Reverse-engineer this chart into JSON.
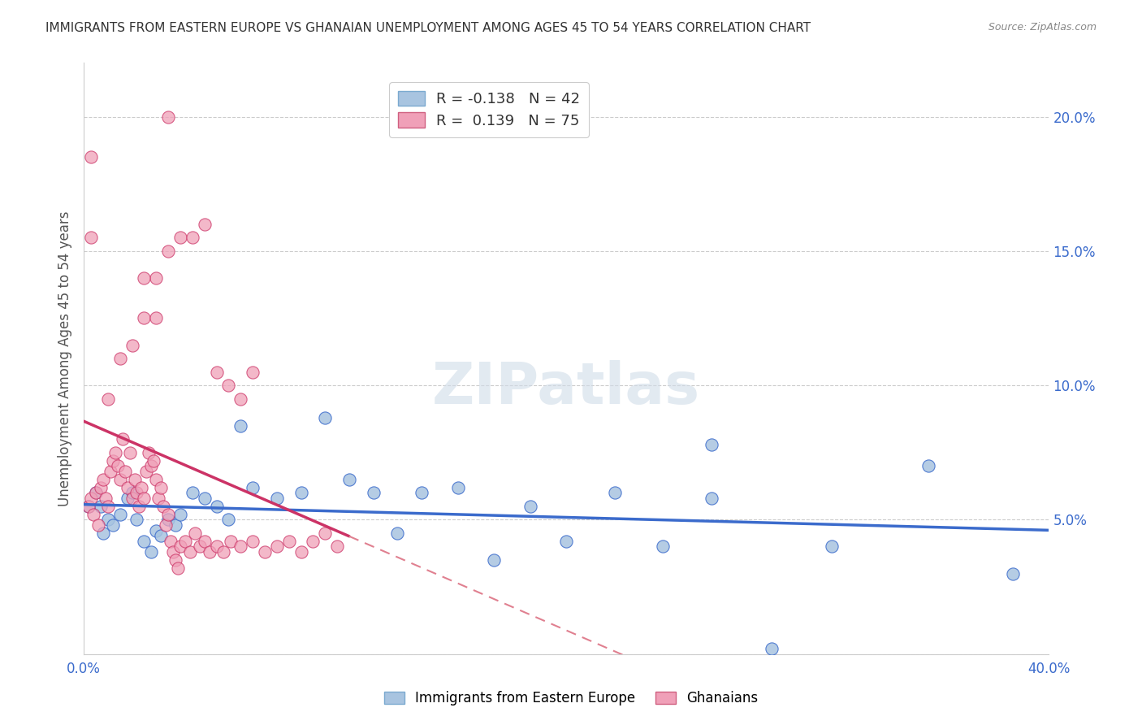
{
  "title": "IMMIGRANTS FROM EASTERN EUROPE VS GHANAIAN UNEMPLOYMENT AMONG AGES 45 TO 54 YEARS CORRELATION CHART",
  "source": "Source: ZipAtlas.com",
  "xlabel": "",
  "ylabel": "Unemployment Among Ages 45 to 54 years",
  "legend_label1": "Immigrants from Eastern Europe",
  "legend_label2": "Ghanaians",
  "R1": "-0.138",
  "N1": "42",
  "R2": "0.139",
  "N2": "75",
  "xlim": [
    0.0,
    0.4
  ],
  "ylim": [
    0.0,
    0.22
  ],
  "x_ticks": [
    0.0,
    0.05,
    0.1,
    0.15,
    0.2,
    0.25,
    0.3,
    0.35,
    0.4
  ],
  "x_tick_labels": [
    "0.0%",
    "",
    "",
    "",
    "",
    "",
    "",
    "",
    "40.0%"
  ],
  "y_ticks": [
    0.0,
    0.05,
    0.1,
    0.15,
    0.2
  ],
  "y_tick_labels": [
    "",
    "5.0%",
    "10.0%",
    "15.0%",
    "20.0%"
  ],
  "color_blue": "#a8c4e0",
  "color_blue_line": "#3b6bcc",
  "color_pink": "#f0a0b8",
  "color_pink_line": "#cc3366",
  "color_pink_dashed": "#e08090",
  "watermark": "ZIPatlas",
  "blue_x": [
    0.002,
    0.005,
    0.007,
    0.008,
    0.01,
    0.012,
    0.015,
    0.018,
    0.02,
    0.022,
    0.025,
    0.028,
    0.03,
    0.032,
    0.035,
    0.038,
    0.04,
    0.045,
    0.05,
    0.055,
    0.06,
    0.065,
    0.07,
    0.08,
    0.09,
    0.1,
    0.11,
    0.12,
    0.13,
    0.14,
    0.155,
    0.17,
    0.185,
    0.2,
    0.22,
    0.24,
    0.26,
    0.285,
    0.31,
    0.35,
    0.385,
    0.26
  ],
  "blue_y": [
    0.055,
    0.06,
    0.055,
    0.045,
    0.05,
    0.048,
    0.052,
    0.058,
    0.06,
    0.05,
    0.042,
    0.038,
    0.046,
    0.044,
    0.05,
    0.048,
    0.052,
    0.06,
    0.058,
    0.055,
    0.05,
    0.085,
    0.062,
    0.058,
    0.06,
    0.088,
    0.065,
    0.06,
    0.045,
    0.06,
    0.062,
    0.035,
    0.055,
    0.042,
    0.06,
    0.04,
    0.058,
    0.002,
    0.04,
    0.07,
    0.03,
    0.078
  ],
  "pink_x": [
    0.002,
    0.003,
    0.004,
    0.005,
    0.006,
    0.007,
    0.008,
    0.009,
    0.01,
    0.011,
    0.012,
    0.013,
    0.014,
    0.015,
    0.016,
    0.017,
    0.018,
    0.019,
    0.02,
    0.021,
    0.022,
    0.023,
    0.024,
    0.025,
    0.026,
    0.027,
    0.028,
    0.029,
    0.03,
    0.031,
    0.032,
    0.033,
    0.034,
    0.035,
    0.036,
    0.037,
    0.038,
    0.039,
    0.04,
    0.042,
    0.044,
    0.046,
    0.048,
    0.05,
    0.052,
    0.055,
    0.058,
    0.061,
    0.065,
    0.07,
    0.075,
    0.08,
    0.085,
    0.09,
    0.095,
    0.1,
    0.105,
    0.01,
    0.015,
    0.02,
    0.025,
    0.03,
    0.035,
    0.04,
    0.045,
    0.05,
    0.055,
    0.06,
    0.065,
    0.07,
    0.003,
    0.003,
    0.025,
    0.03,
    0.035
  ],
  "pink_y": [
    0.055,
    0.058,
    0.052,
    0.06,
    0.048,
    0.062,
    0.065,
    0.058,
    0.055,
    0.068,
    0.072,
    0.075,
    0.07,
    0.065,
    0.08,
    0.068,
    0.062,
    0.075,
    0.058,
    0.065,
    0.06,
    0.055,
    0.062,
    0.058,
    0.068,
    0.075,
    0.07,
    0.072,
    0.065,
    0.058,
    0.062,
    0.055,
    0.048,
    0.052,
    0.042,
    0.038,
    0.035,
    0.032,
    0.04,
    0.042,
    0.038,
    0.045,
    0.04,
    0.042,
    0.038,
    0.04,
    0.038,
    0.042,
    0.04,
    0.042,
    0.038,
    0.04,
    0.042,
    0.038,
    0.042,
    0.045,
    0.04,
    0.095,
    0.11,
    0.115,
    0.125,
    0.14,
    0.15,
    0.155,
    0.155,
    0.16,
    0.105,
    0.1,
    0.095,
    0.105,
    0.155,
    0.185,
    0.14,
    0.125,
    0.2
  ]
}
